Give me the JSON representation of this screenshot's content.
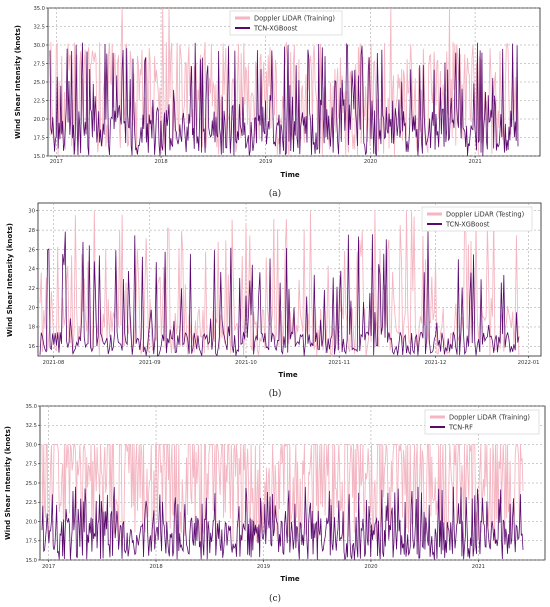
{
  "colors": {
    "observed": "#f4b6c2",
    "predicted": "#5a0a6e",
    "grid": "#9a9a9a"
  },
  "chart_data": [
    {
      "type": "line",
      "caption": "(a)",
      "xlabel": "Time",
      "ylabel": "Wind Shear Intensity (knots)",
      "xlim": [
        "2016-12-01",
        "2021-08-15"
      ],
      "xdomain": [
        2016.92,
        2021.62
      ],
      "ylim": [
        15.0,
        35.0
      ],
      "yticks": [
        15.0,
        17.5,
        20.0,
        22.5,
        25.0,
        27.5,
        30.0,
        32.5,
        35.0
      ],
      "ytick_labels": [
        "15.0",
        "17.5",
        "20.0",
        "22.5",
        "25.0",
        "27.5",
        "30.0",
        "32.5",
        "35.0"
      ],
      "xticks": [
        2017,
        2018,
        2019,
        2020,
        2021
      ],
      "xtick_labels": [
        "2017",
        "2018",
        "2019",
        "2020",
        "2021"
      ],
      "legend": "top-center",
      "grid": true,
      "series": [
        {
          "name": "Doppler LiDAR (Training)",
          "base": [
            15,
            26.5
          ],
          "peak": 30.5,
          "spike": 35,
          "role": "observed"
        },
        {
          "name": "TCN-XGBoost",
          "base": [
            15,
            22
          ],
          "peak": 30.5,
          "spike": 35,
          "role": "predicted"
        }
      ]
    },
    {
      "type": "line",
      "caption": "(b)",
      "xlabel": "Time",
      "ylabel": "Wind Shear Intensity (knots)",
      "xlim": [
        "2021-07-27",
        "2022-01-05"
      ],
      "xdomain": [
        0,
        162
      ],
      "ylim": [
        15,
        30.8
      ],
      "yticks": [
        16,
        18,
        20,
        22,
        24,
        26,
        28,
        30
      ],
      "ytick_labels": [
        "16",
        "18",
        "20",
        "22",
        "24",
        "26",
        "28",
        "30"
      ],
      "xticks": [
        5,
        36,
        67,
        97,
        128,
        158
      ],
      "xtick_labels": [
        "2021-08",
        "2021-09",
        "2021-10",
        "2021-11",
        "2021-12",
        "2022-01"
      ],
      "legend": "top-right",
      "grid": true,
      "series": [
        {
          "name": "Doppler LiDAR (Testing)",
          "base": [
            15,
            20
          ],
          "peak": 30,
          "spike": 30,
          "role": "observed"
        },
        {
          "name": "TCN-XGBoost",
          "base": [
            15,
            17.5
          ],
          "peak": 28,
          "spike": 28,
          "role": "predicted"
        }
      ]
    },
    {
      "type": "line",
      "caption": "(c)",
      "xlabel": "Time",
      "ylabel": "Wind Shear Intensity (knots)",
      "xlim": [
        "2016-12-01",
        "2021-08-15"
      ],
      "xdomain": [
        2016.92,
        2021.62
      ],
      "ylim": [
        15.0,
        35.0
      ],
      "yticks": [
        15.0,
        17.5,
        20.0,
        22.5,
        25.0,
        27.5,
        30.0,
        32.5,
        35.0
      ],
      "ytick_labels": [
        "15.0",
        "17.5",
        "20.0",
        "22.5",
        "25.0",
        "27.5",
        "30.0",
        "32.5",
        "35.0"
      ],
      "xticks": [
        2017,
        2018,
        2019,
        2020,
        2021
      ],
      "xtick_labels": [
        "2017",
        "2018",
        "2019",
        "2020",
        "2021"
      ],
      "legend": "top-right",
      "grid": true,
      "series": [
        {
          "name": "Doppler LiDAR (Training)",
          "base": [
            17,
            30
          ],
          "peak": 30,
          "spike": 30,
          "role": "observed"
        },
        {
          "name": "TCN-RF",
          "base": [
            15,
            20.5
          ],
          "peak": 24.5,
          "spike": 24.5,
          "role": "predicted"
        }
      ]
    }
  ]
}
